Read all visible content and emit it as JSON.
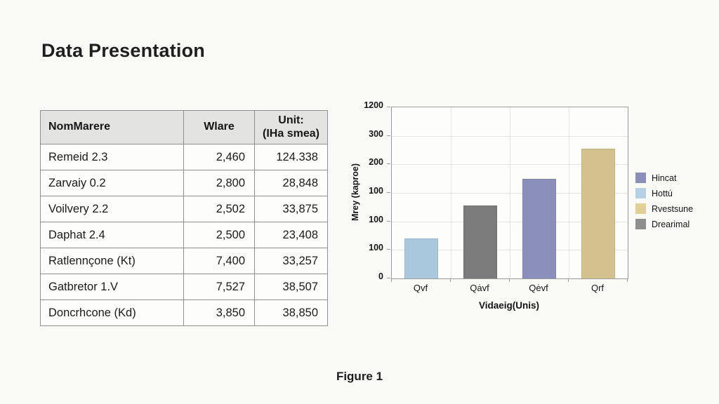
{
  "page": {
    "title": "Data Presentation",
    "caption": "Figure 1",
    "background_color": "#f9f9f6"
  },
  "table": {
    "header_background": "#e3e3e2",
    "headers": [
      {
        "lines": [
          "NomMarere"
        ]
      },
      {
        "lines": [
          "Wlare"
        ]
      },
      {
        "lines": [
          "Unit:",
          "(IHa smea)"
        ]
      }
    ],
    "rows": [
      {
        "name": "Remeid 2.3",
        "value": "2,460",
        "unit": "124.338"
      },
      {
        "name": "Zarvaiy 0.2",
        "value": "2,800",
        "unit": "28,848"
      },
      {
        "name": "Voilvery 2.2",
        "value": "2,502",
        "unit": "33,875"
      },
      {
        "name": "Daphat 2.4",
        "value": "2,500",
        "unit": "23,408"
      },
      {
        "name": "Ratlennçone (Kt)",
        "value": "7,400",
        "unit": "33,257"
      },
      {
        "name": "Gatbretor 1.V",
        "value": "7,527",
        "unit": "38,507"
      },
      {
        "name": "Doncrhcone (Kd)",
        "value": "3,850",
        "unit": "38,850"
      }
    ]
  },
  "chart_data": {
    "type": "bar",
    "title": "",
    "xlabel": "Vidaeig(Unis)",
    "ylabel": "Mrey (kaproe)",
    "categories": [
      "Qvf",
      "Qȧvf",
      "Qėvf",
      "Qrf"
    ],
    "values": [
      140,
      255,
      350,
      455
    ],
    "bar_colors": [
      "#a9c8dd",
      "#7b7b7b",
      "#8b90ba",
      "#d3c28e"
    ],
    "bar_border_colors": [
      "#96b7cf",
      "#6e6e6e",
      "#7e83ad",
      "#c2b07a"
    ],
    "y_tick_labels": [
      "0",
      "100",
      "100",
      "100",
      "200",
      "300",
      "1200"
    ],
    "ylim": [
      0,
      600
    ],
    "grid": true,
    "legend_position": "right",
    "legend": [
      {
        "label": "Hincat",
        "color": "#8a8fba"
      },
      {
        "label": "Hottú",
        "color": "#b5d1e3"
      },
      {
        "label": "Rvestsune",
        "color": "#e0d093"
      },
      {
        "label": "Drearimal",
        "color": "#8f8f8f"
      }
    ]
  }
}
